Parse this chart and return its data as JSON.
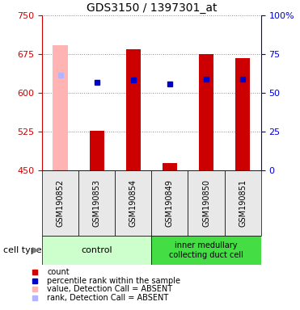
{
  "title": "GDS3150 / 1397301_at",
  "samples": [
    "GSM190852",
    "GSM190853",
    "GSM190854",
    "GSM190849",
    "GSM190850",
    "GSM190851"
  ],
  "ylim_left": [
    450,
    750
  ],
  "ylim_right": [
    0,
    100
  ],
  "yticks_left": [
    450,
    525,
    600,
    675,
    750
  ],
  "yticks_right": [
    0,
    25,
    50,
    75,
    100
  ],
  "ytick_labels_right": [
    "0",
    "25",
    "50",
    "75",
    "100%"
  ],
  "bar_values": [
    null,
    527,
    685,
    465,
    676,
    668
  ],
  "bar_color": "#cc0000",
  "absent_bar_value": 693,
  "absent_bar_color": "#ffb3b3",
  "absent_bar_index": 0,
  "percentile_values": [
    635,
    620,
    625,
    618,
    627,
    627
  ],
  "percentile_color": "#0000cc",
  "absent_percentile_value": 635,
  "absent_percentile_color": "#b3b3ff",
  "absent_percentile_index": 0,
  "bar_width": 0.4,
  "dotgrid_color": "#888888",
  "left_axis_color": "#cc0000",
  "right_axis_color": "#0000cc",
  "background_plot": "#e8e8e8",
  "background_group_control": "#ccffcc",
  "background_group_inner": "#44dd44",
  "legend_items": [
    {
      "color": "#cc0000",
      "label": "count"
    },
    {
      "color": "#0000cc",
      "label": "percentile rank within the sample"
    },
    {
      "color": "#ffb3b3",
      "label": "value, Detection Call = ABSENT"
    },
    {
      "color": "#b3b3ff",
      "label": "rank, Detection Call = ABSENT"
    }
  ]
}
